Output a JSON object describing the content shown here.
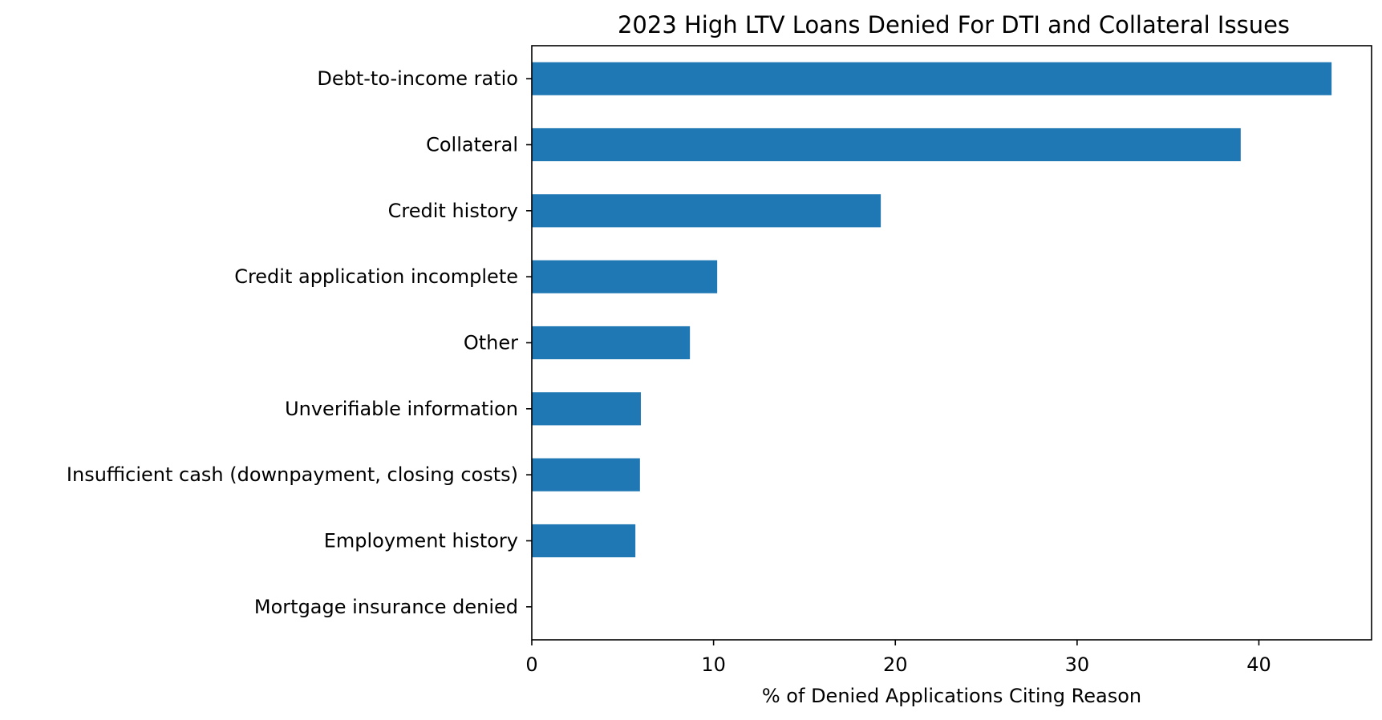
{
  "chart_data": {
    "type": "bar",
    "orientation": "horizontal",
    "title": "2023 High LTV Loans Denied For DTI and Collateral Issues",
    "xlabel": "% of Denied Applications Citing Reason",
    "ylabel": "",
    "categories": [
      "Debt-to-income ratio",
      "Collateral",
      "Credit history",
      "Credit application incomplete",
      "Other",
      "Unverifiable information",
      "Insufficient cash (downpayment, closing costs)",
      "Employment history",
      "Mortgage insurance denied"
    ],
    "values": [
      44.0,
      39.0,
      19.2,
      10.2,
      8.7,
      6.0,
      5.95,
      5.7,
      0.0
    ],
    "xlim": [
      0,
      46.2
    ],
    "xticks": [
      0,
      10,
      20,
      30,
      40
    ],
    "bar_color": "#1f77b4",
    "grid": false,
    "legend": "none"
  }
}
